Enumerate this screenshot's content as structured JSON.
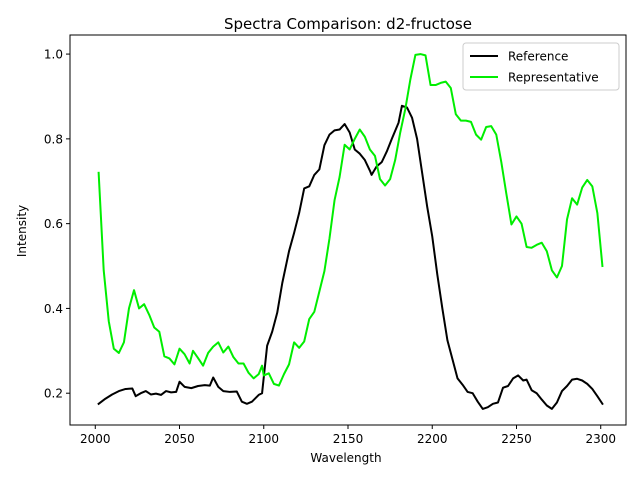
{
  "chart_data": {
    "type": "line",
    "title": "Spectra Comparison: d2-fructose",
    "xlabel": "Wavelength",
    "ylabel": "Intensity",
    "xlim": [
      1985,
      2315
    ],
    "ylim": [
      0.125,
      1.045
    ],
    "xticks": [
      2000,
      2050,
      2100,
      2150,
      2200,
      2250,
      2300
    ],
    "yticks": [
      0.2,
      0.4,
      0.6,
      0.8,
      1.0
    ],
    "xtick_labels": [
      "2000",
      "2050",
      "2100",
      "2150",
      "2200",
      "2250",
      "2300"
    ],
    "ytick_labels": [
      "0.2",
      "0.4",
      "0.6",
      "0.8",
      "1.0"
    ],
    "grid": false,
    "legend_position": "top-right",
    "series": [
      {
        "name": "Reference",
        "color": "#000000",
        "points": [
          [
            2002,
            0.175
          ],
          [
            2006,
            0.187
          ],
          [
            2010,
            0.197
          ],
          [
            2014,
            0.205
          ],
          [
            2018,
            0.21
          ],
          [
            2022,
            0.211
          ],
          [
            2024,
            0.193
          ],
          [
            2027,
            0.2
          ],
          [
            2030,
            0.205
          ],
          [
            2033,
            0.197
          ],
          [
            2036,
            0.199
          ],
          [
            2039,
            0.196
          ],
          [
            2042,
            0.205
          ],
          [
            2045,
            0.202
          ],
          [
            2048,
            0.203
          ],
          [
            2050,
            0.227
          ],
          [
            2053,
            0.215
          ],
          [
            2057,
            0.212
          ],
          [
            2061,
            0.217
          ],
          [
            2065,
            0.219
          ],
          [
            2068,
            0.218
          ],
          [
            2070,
            0.237
          ],
          [
            2073,
            0.215
          ],
          [
            2076,
            0.205
          ],
          [
            2080,
            0.203
          ],
          [
            2084,
            0.204
          ],
          [
            2087,
            0.18
          ],
          [
            2090,
            0.175
          ],
          [
            2093,
            0.18
          ],
          [
            2097,
            0.196
          ],
          [
            2099,
            0.2
          ],
          [
            2102,
            0.312
          ],
          [
            2105,
            0.345
          ],
          [
            2108,
            0.39
          ],
          [
            2111,
            0.46
          ],
          [
            2115,
            0.535
          ],
          [
            2118,
            0.578
          ],
          [
            2121,
            0.625
          ],
          [
            2124,
            0.683
          ],
          [
            2127,
            0.688
          ],
          [
            2130,
            0.715
          ],
          [
            2133,
            0.728
          ],
          [
            2136,
            0.785
          ],
          [
            2139,
            0.81
          ],
          [
            2142,
            0.82
          ],
          [
            2145,
            0.822
          ],
          [
            2148,
            0.835
          ],
          [
            2151,
            0.815
          ],
          [
            2154,
            0.775
          ],
          [
            2157,
            0.765
          ],
          [
            2160,
            0.75
          ],
          [
            2163,
            0.725
          ],
          [
            2164,
            0.715
          ],
          [
            2167,
            0.735
          ],
          [
            2170,
            0.745
          ],
          [
            2173,
            0.77
          ],
          [
            2176,
            0.8
          ],
          [
            2180,
            0.838
          ],
          [
            2182,
            0.878
          ],
          [
            2185,
            0.874
          ],
          [
            2188,
            0.85
          ],
          [
            2191,
            0.8
          ],
          [
            2194,
            0.72
          ],
          [
            2197,
            0.64
          ],
          [
            2200,
            0.57
          ],
          [
            2203,
            0.48
          ],
          [
            2206,
            0.4
          ],
          [
            2209,
            0.325
          ],
          [
            2212,
            0.28
          ],
          [
            2215,
            0.235
          ],
          [
            2218,
            0.22
          ],
          [
            2221,
            0.203
          ],
          [
            2224,
            0.2
          ],
          [
            2227,
            0.18
          ],
          [
            2230,
            0.163
          ],
          [
            2233,
            0.167
          ],
          [
            2236,
            0.175
          ],
          [
            2239,
            0.178
          ],
          [
            2242,
            0.213
          ],
          [
            2245,
            0.217
          ],
          [
            2248,
            0.235
          ],
          [
            2251,
            0.242
          ],
          [
            2254,
            0.23
          ],
          [
            2256,
            0.232
          ],
          [
            2259,
            0.207
          ],
          [
            2262,
            0.2
          ],
          [
            2265,
            0.185
          ],
          [
            2268,
            0.171
          ],
          [
            2271,
            0.163
          ],
          [
            2274,
            0.178
          ],
          [
            2277,
            0.205
          ],
          [
            2280,
            0.217
          ],
          [
            2283,
            0.232
          ],
          [
            2286,
            0.234
          ],
          [
            2289,
            0.23
          ],
          [
            2292,
            0.222
          ],
          [
            2295,
            0.21
          ],
          [
            2298,
            0.193
          ],
          [
            2301,
            0.175
          ]
        ]
      },
      {
        "name": "Representative",
        "color": "#00ee00",
        "points": [
          [
            2002,
            0.72
          ],
          [
            2005,
            0.49
          ],
          [
            2008,
            0.37
          ],
          [
            2011,
            0.305
          ],
          [
            2014,
            0.295
          ],
          [
            2017,
            0.32
          ],
          [
            2020,
            0.4
          ],
          [
            2023,
            0.443
          ],
          [
            2026,
            0.4
          ],
          [
            2029,
            0.41
          ],
          [
            2032,
            0.385
          ],
          [
            2035,
            0.355
          ],
          [
            2038,
            0.345
          ],
          [
            2041,
            0.287
          ],
          [
            2044,
            0.282
          ],
          [
            2047,
            0.268
          ],
          [
            2050,
            0.305
          ],
          [
            2053,
            0.292
          ],
          [
            2056,
            0.27
          ],
          [
            2058,
            0.3
          ],
          [
            2061,
            0.283
          ],
          [
            2064,
            0.265
          ],
          [
            2067,
            0.295
          ],
          [
            2070,
            0.31
          ],
          [
            2073,
            0.32
          ],
          [
            2076,
            0.296
          ],
          [
            2079,
            0.31
          ],
          [
            2082,
            0.285
          ],
          [
            2085,
            0.27
          ],
          [
            2088,
            0.27
          ],
          [
            2091,
            0.248
          ],
          [
            2094,
            0.235
          ],
          [
            2097,
            0.245
          ],
          [
            2099,
            0.265
          ],
          [
            2100,
            0.242
          ],
          [
            2103,
            0.247
          ],
          [
            2106,
            0.222
          ],
          [
            2109,
            0.218
          ],
          [
            2112,
            0.245
          ],
          [
            2115,
            0.268
          ],
          [
            2118,
            0.32
          ],
          [
            2121,
            0.307
          ],
          [
            2124,
            0.322
          ],
          [
            2127,
            0.375
          ],
          [
            2130,
            0.392
          ],
          [
            2133,
            0.44
          ],
          [
            2136,
            0.488
          ],
          [
            2139,
            0.565
          ],
          [
            2142,
            0.655
          ],
          [
            2145,
            0.71
          ],
          [
            2148,
            0.786
          ],
          [
            2151,
            0.775
          ],
          [
            2154,
            0.8
          ],
          [
            2157,
            0.822
          ],
          [
            2160,
            0.805
          ],
          [
            2163,
            0.775
          ],
          [
            2166,
            0.76
          ],
          [
            2169,
            0.705
          ],
          [
            2172,
            0.69
          ],
          [
            2175,
            0.705
          ],
          [
            2178,
            0.75
          ],
          [
            2181,
            0.815
          ],
          [
            2184,
            0.87
          ],
          [
            2187,
            0.94
          ],
          [
            2190,
            0.998
          ],
          [
            2193,
            1.0
          ],
          [
            2196,
            0.997
          ],
          [
            2199,
            0.927
          ],
          [
            2202,
            0.927
          ],
          [
            2205,
            0.932
          ],
          [
            2208,
            0.935
          ],
          [
            2211,
            0.92
          ],
          [
            2214,
            0.858
          ],
          [
            2217,
            0.843
          ],
          [
            2220,
            0.843
          ],
          [
            2223,
            0.84
          ],
          [
            2226,
            0.81
          ],
          [
            2229,
            0.798
          ],
          [
            2232,
            0.828
          ],
          [
            2235,
            0.83
          ],
          [
            2238,
            0.81
          ],
          [
            2241,
            0.745
          ],
          [
            2244,
            0.67
          ],
          [
            2247,
            0.598
          ],
          [
            2250,
            0.617
          ],
          [
            2253,
            0.6
          ],
          [
            2256,
            0.545
          ],
          [
            2259,
            0.543
          ],
          [
            2262,
            0.55
          ],
          [
            2265,
            0.555
          ],
          [
            2268,
            0.535
          ],
          [
            2271,
            0.49
          ],
          [
            2274,
            0.473
          ],
          [
            2277,
            0.5
          ],
          [
            2280,
            0.61
          ],
          [
            2283,
            0.66
          ],
          [
            2286,
            0.645
          ],
          [
            2289,
            0.685
          ],
          [
            2292,
            0.703
          ],
          [
            2295,
            0.688
          ],
          [
            2298,
            0.625
          ],
          [
            2301,
            0.5
          ]
        ]
      }
    ]
  }
}
